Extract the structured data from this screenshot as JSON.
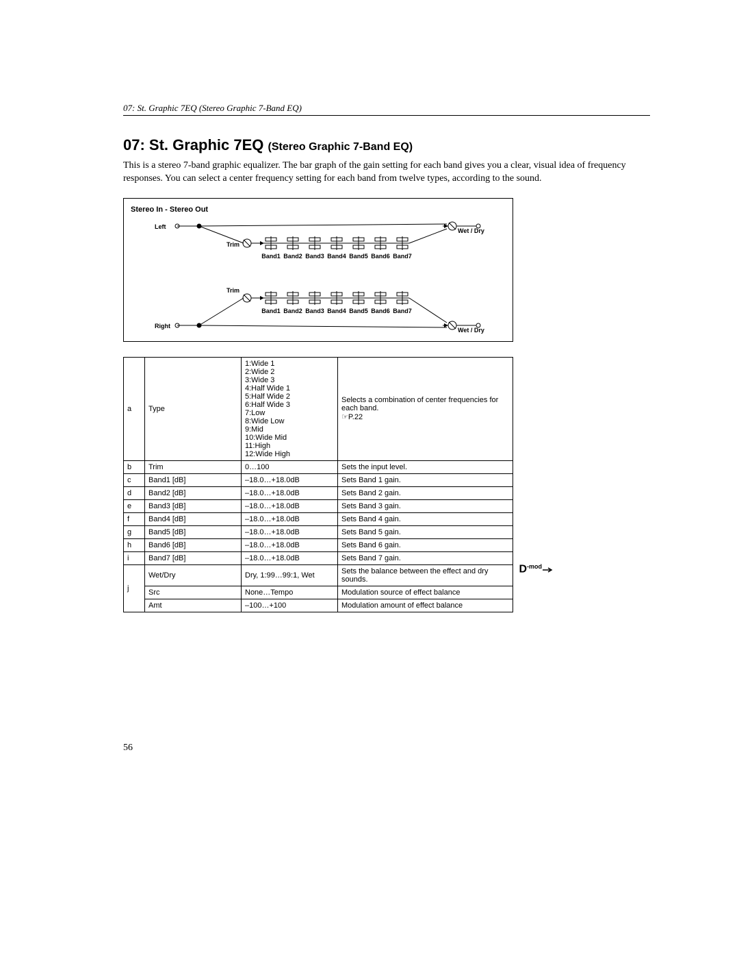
{
  "running_head": "07: St. Graphic 7EQ (Stereo Graphic 7-Band EQ)",
  "title_main": "07: St. Graphic 7EQ ",
  "title_sub": "(Stereo Graphic 7-Band EQ)",
  "intro": "This is a stereo 7-band graphic equalizer. The bar graph of the gain setting for each band gives you a clear, visual idea of frequency responses. You can select a center frequency setting for each band from twelve types, according to the sound.",
  "diagram": {
    "title": "Stereo In - Stereo Out",
    "left_label": "Left",
    "right_label": "Right",
    "trim_label": "Trim",
    "wetdry_label": "Wet / Dry",
    "band_labels": [
      "Band1",
      "Band2",
      "Band3",
      "Band4",
      "Band5",
      "Band6",
      "Band7"
    ]
  },
  "table": [
    {
      "letter": "a",
      "param": "Type",
      "range": "1:Wide 1\n2:Wide 2\n3:Wide 3\n4:Half Wide 1\n5:Half Wide 2\n6:Half Wide 3\n7:Low\n8:Wide Low\n9:Mid\n10:Wide Mid\n11:High\n12:Wide High",
      "desc": "Selects a combination of center frequencies for each band.\n☞P.22"
    },
    {
      "letter": "b",
      "param": "Trim",
      "range": "0…100",
      "desc": "Sets the input level."
    },
    {
      "letter": "c",
      "param": "Band1 [dB]",
      "range": "–18.0…+18.0dB",
      "desc": "Sets Band 1 gain."
    },
    {
      "letter": "d",
      "param": "Band2 [dB]",
      "range": "–18.0…+18.0dB",
      "desc": "Sets Band 2 gain."
    },
    {
      "letter": "e",
      "param": "Band3 [dB]",
      "range": "–18.0…+18.0dB",
      "desc": "Sets Band 3 gain."
    },
    {
      "letter": "f",
      "param": "Band4 [dB]",
      "range": "–18.0…+18.0dB",
      "desc": "Sets Band 4 gain."
    },
    {
      "letter": "g",
      "param": "Band5 [dB]",
      "range": "–18.0…+18.0dB",
      "desc": "Sets Band 5 gain."
    },
    {
      "letter": "h",
      "param": "Band6 [dB]",
      "range": "–18.0…+18.0dB",
      "desc": "Sets Band 6 gain."
    },
    {
      "letter": "i",
      "param": "Band7 [dB]",
      "range": "–18.0…+18.0dB",
      "desc": "Sets Band 7 gain."
    },
    {
      "letter": "",
      "param": "Wet/Dry",
      "range": "Dry, 1:99…99:1, Wet",
      "desc": "Sets the balance between the effect and dry sounds."
    },
    {
      "letter": "j",
      "param": "Src",
      "range": "None…Tempo",
      "desc": "Modulation source of effect balance"
    },
    {
      "letter": "",
      "param": "Amt",
      "range": "–100…+100",
      "desc": "Modulation amount of effect balance"
    }
  ],
  "row_spans": {
    "9": 3
  },
  "dmod_row": 9,
  "dmod_label": "D",
  "dmod_sup": "-mod",
  "page_number": "56"
}
